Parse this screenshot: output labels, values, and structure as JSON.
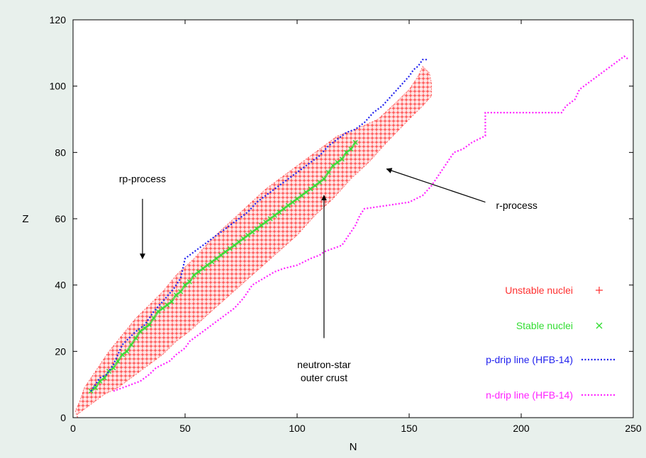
{
  "chart_data": {
    "type": "scatter",
    "xlabel": "N",
    "ylabel": "Z",
    "xlim": [
      0,
      250
    ],
    "ylim": [
      0,
      120
    ],
    "x_ticks": [
      0,
      50,
      100,
      150,
      200,
      250
    ],
    "y_ticks": [
      0,
      20,
      40,
      60,
      80,
      100,
      120
    ],
    "grid": false,
    "legend_position": "bottom-right",
    "series": [
      {
        "name": "Unstable nuclei",
        "marker": "+",
        "color": "#ff3030",
        "kind": "band",
        "band_points": [
          [
            2,
            0
          ],
          [
            2,
            1
          ],
          [
            6,
            3
          ],
          [
            10,
            5
          ],
          [
            14,
            7
          ],
          [
            20,
            9
          ],
          [
            26,
            12
          ],
          [
            32,
            15
          ],
          [
            40,
            19
          ],
          [
            46,
            23
          ],
          [
            52,
            26
          ],
          [
            60,
            31
          ],
          [
            70,
            37
          ],
          [
            80,
            43
          ],
          [
            90,
            49
          ],
          [
            100,
            55
          ],
          [
            108,
            61
          ],
          [
            116,
            66
          ],
          [
            124,
            72
          ],
          [
            132,
            77
          ],
          [
            140,
            83
          ],
          [
            150,
            90
          ],
          [
            156,
            94
          ],
          [
            160,
            97
          ],
          [
            160,
            101
          ],
          [
            159,
            104
          ],
          [
            156,
            106
          ],
          [
            154,
            103
          ],
          [
            150,
            99
          ],
          [
            144,
            95
          ],
          [
            136,
            90
          ],
          [
            126,
            87
          ],
          [
            118,
            85
          ],
          [
            110,
            81
          ],
          [
            102,
            77
          ],
          [
            94,
            73
          ],
          [
            86,
            69
          ],
          [
            78,
            64
          ],
          [
            70,
            59
          ],
          [
            62,
            54
          ],
          [
            54,
            48
          ],
          [
            46,
            43
          ],
          [
            40,
            38
          ],
          [
            34,
            34
          ],
          [
            28,
            30
          ],
          [
            22,
            25
          ],
          [
            16,
            20
          ],
          [
            12,
            16
          ],
          [
            8,
            12
          ],
          [
            5,
            9
          ],
          [
            3,
            5
          ],
          [
            1,
            2
          ]
        ]
      },
      {
        "name": "Stable nuclei",
        "marker": "x",
        "color": "#33dd33",
        "points": [
          [
            8,
            8
          ],
          [
            10,
            9
          ],
          [
            12,
            11
          ],
          [
            14,
            12
          ],
          [
            16,
            14
          ],
          [
            18,
            15
          ],
          [
            20,
            17
          ],
          [
            22,
            19
          ],
          [
            24,
            20
          ],
          [
            26,
            22
          ],
          [
            28,
            24
          ],
          [
            30,
            26
          ],
          [
            32,
            27
          ],
          [
            34,
            28
          ],
          [
            36,
            30
          ],
          [
            38,
            32
          ],
          [
            40,
            33
          ],
          [
            42,
            34
          ],
          [
            44,
            35
          ],
          [
            46,
            37
          ],
          [
            48,
            38
          ],
          [
            50,
            40
          ],
          [
            52,
            41
          ],
          [
            54,
            43
          ],
          [
            56,
            44
          ],
          [
            58,
            45
          ],
          [
            60,
            46
          ],
          [
            62,
            47
          ],
          [
            64,
            48
          ],
          [
            66,
            49
          ],
          [
            68,
            50
          ],
          [
            70,
            51
          ],
          [
            72,
            52
          ],
          [
            74,
            53
          ],
          [
            76,
            54
          ],
          [
            78,
            55
          ],
          [
            80,
            56
          ],
          [
            82,
            57
          ],
          [
            84,
            58
          ],
          [
            86,
            59
          ],
          [
            88,
            60
          ],
          [
            90,
            61
          ],
          [
            92,
            62
          ],
          [
            94,
            63
          ],
          [
            96,
            64
          ],
          [
            98,
            65
          ],
          [
            100,
            66
          ],
          [
            102,
            67
          ],
          [
            104,
            68
          ],
          [
            106,
            69
          ],
          [
            108,
            70
          ],
          [
            110,
            71
          ],
          [
            112,
            72
          ],
          [
            114,
            74
          ],
          [
            116,
            76
          ],
          [
            118,
            77
          ],
          [
            120,
            78
          ],
          [
            122,
            80
          ],
          [
            124,
            81
          ],
          [
            126,
            83
          ]
        ]
      },
      {
        "name": "p-drip line (HFB-14)",
        "marker": "dotted-line",
        "color": "#2222ee",
        "points": [
          [
            8,
            8
          ],
          [
            10,
            10
          ],
          [
            12,
            12
          ],
          [
            15,
            13
          ],
          [
            18,
            16
          ],
          [
            20,
            19
          ],
          [
            22,
            22
          ],
          [
            25,
            24
          ],
          [
            28,
            26
          ],
          [
            32,
            28
          ],
          [
            36,
            32
          ],
          [
            40,
            35
          ],
          [
            45,
            39
          ],
          [
            48,
            42
          ],
          [
            50,
            48
          ],
          [
            54,
            50
          ],
          [
            58,
            52
          ],
          [
            62,
            54
          ],
          [
            66,
            56
          ],
          [
            70,
            58
          ],
          [
            74,
            60
          ],
          [
            78,
            62
          ],
          [
            82,
            65
          ],
          [
            86,
            67
          ],
          [
            90,
            69
          ],
          [
            94,
            71
          ],
          [
            98,
            73
          ],
          [
            102,
            75
          ],
          [
            106,
            77
          ],
          [
            110,
            79
          ],
          [
            114,
            82
          ],
          [
            118,
            84
          ],
          [
            122,
            86
          ],
          [
            126,
            87
          ],
          [
            130,
            89
          ],
          [
            134,
            92
          ],
          [
            138,
            94
          ],
          [
            142,
            97
          ],
          [
            146,
            100
          ],
          [
            150,
            103
          ],
          [
            152,
            105
          ],
          [
            154,
            106
          ],
          [
            156,
            108
          ],
          [
            158,
            108
          ]
        ]
      },
      {
        "name": "n-drip line (HFB-14)",
        "marker": "dotted-line",
        "color": "#ff22ff",
        "points": [
          [
            18,
            8
          ],
          [
            22,
            9
          ],
          [
            26,
            10
          ],
          [
            30,
            11
          ],
          [
            34,
            13
          ],
          [
            37,
            15
          ],
          [
            40,
            16
          ],
          [
            43,
            17
          ],
          [
            46,
            19
          ],
          [
            50,
            21
          ],
          [
            52,
            23
          ],
          [
            56,
            25
          ],
          [
            60,
            27
          ],
          [
            64,
            29
          ],
          [
            68,
            31
          ],
          [
            72,
            33
          ],
          [
            76,
            36
          ],
          [
            78,
            38
          ],
          [
            80,
            40
          ],
          [
            85,
            42
          ],
          [
            90,
            44
          ],
          [
            94,
            45
          ],
          [
            100,
            46
          ],
          [
            106,
            48
          ],
          [
            110,
            49
          ],
          [
            112,
            50
          ],
          [
            116,
            51
          ],
          [
            120,
            52
          ],
          [
            123,
            55
          ],
          [
            125,
            57
          ],
          [
            126,
            58
          ],
          [
            128,
            61
          ],
          [
            130,
            63
          ],
          [
            140,
            64
          ],
          [
            150,
            65
          ],
          [
            156,
            67
          ],
          [
            160,
            70
          ],
          [
            165,
            75
          ],
          [
            170,
            80
          ],
          [
            174,
            81
          ],
          [
            178,
            83
          ],
          [
            184,
            85
          ],
          [
            184,
            92
          ],
          [
            200,
            92
          ],
          [
            218,
            92
          ],
          [
            220,
            94
          ],
          [
            224,
            96
          ],
          [
            226,
            99
          ],
          [
            230,
            101
          ],
          [
            232,
            102
          ],
          [
            236,
            104
          ],
          [
            240,
            106
          ],
          [
            244,
            108
          ],
          [
            246,
            109
          ],
          [
            248,
            108
          ]
        ]
      }
    ],
    "annotations": [
      {
        "text": "rp-process",
        "x": 31,
        "y": 71
      },
      {
        "text": "r-process",
        "x": 198,
        "y": 63
      },
      {
        "text": "neutron-star",
        "x": 112,
        "y": 15
      },
      {
        "text": "outer crust",
        "x": 112,
        "y": 11
      }
    ],
    "arrows": [
      {
        "name": "rp-process-arrow",
        "from": [
          31,
          66
        ],
        "to": [
          31,
          48
        ]
      },
      {
        "name": "r-process-arrow",
        "from": [
          184,
          65
        ],
        "to": [
          140,
          75
        ]
      },
      {
        "name": "neutron-star-arrow",
        "from": [
          112,
          24
        ],
        "to": [
          112,
          67
        ]
      }
    ]
  }
}
